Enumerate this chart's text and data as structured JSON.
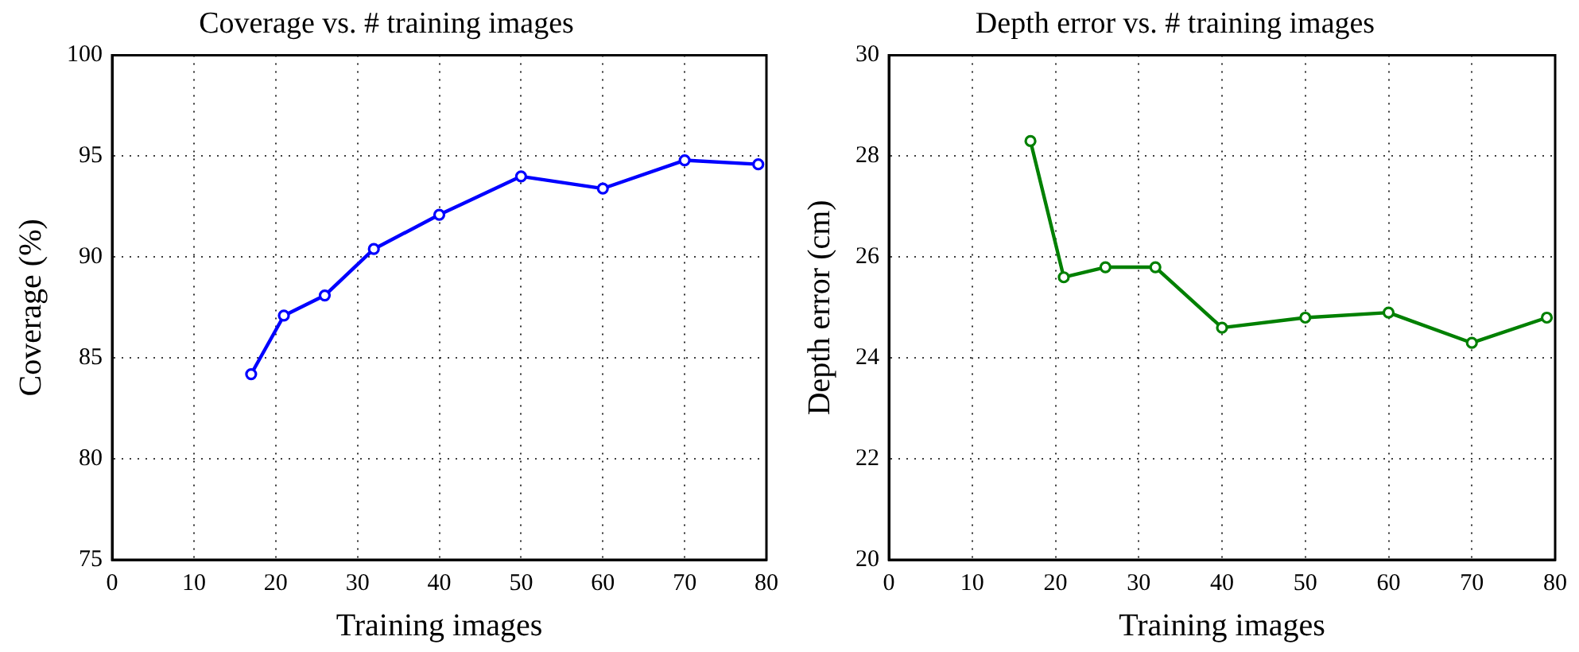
{
  "chart_data": [
    {
      "type": "line",
      "title": "Coverage vs. # training images",
      "xlabel": "Training images",
      "ylabel": "Coverage (%)",
      "xlim": [
        0,
        80
      ],
      "xticks": [
        0,
        10,
        20,
        30,
        40,
        50,
        60,
        70,
        80
      ],
      "ylim": [
        75,
        100
      ],
      "yticks": [
        75,
        80,
        85,
        90,
        95,
        100
      ],
      "grid": true,
      "marker": "circle",
      "line_style": "solid",
      "series": [
        {
          "color": "#0000ff",
          "x": [
            17,
            21,
            26,
            32,
            40,
            50,
            60,
            70,
            79
          ],
          "values": [
            84.2,
            87.1,
            88.1,
            90.4,
            92.1,
            94.0,
            93.4,
            94.8,
            94.6
          ]
        }
      ]
    },
    {
      "type": "line",
      "title": "Depth error vs. # training images",
      "xlabel": "Training images",
      "ylabel": "Depth error (cm)",
      "xlim": [
        0,
        80
      ],
      "xticks": [
        0,
        10,
        20,
        30,
        40,
        50,
        60,
        70,
        80
      ],
      "ylim": [
        20,
        30
      ],
      "yticks": [
        20,
        22,
        24,
        26,
        28,
        30
      ],
      "grid": true,
      "marker": "circle",
      "line_style": "solid",
      "series": [
        {
          "color": "#008000",
          "x": [
            17,
            21,
            26,
            32,
            40,
            50,
            60,
            70,
            79
          ],
          "values": [
            28.3,
            25.6,
            25.8,
            25.8,
            24.6,
            24.8,
            24.9,
            24.3,
            24.8
          ]
        }
      ]
    }
  ]
}
